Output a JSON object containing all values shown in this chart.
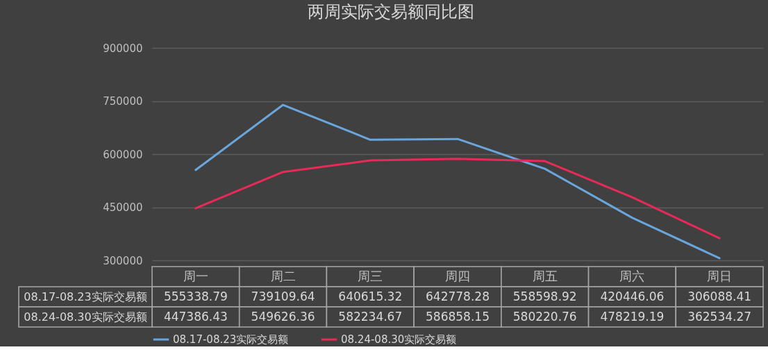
{
  "chart_data": {
    "type": "line",
    "title": "两周实际交易额同比图",
    "categories": [
      "周一",
      "周二",
      "周三",
      "周四",
      "周五",
      "周六",
      "周日"
    ],
    "series": [
      {
        "name": "08.17-08.23实际交易额",
        "color": "#6aa5dc",
        "values": [
          555338.79,
          739109.64,
          640615.32,
          642778.28,
          558598.92,
          420446.06,
          306088.41
        ]
      },
      {
        "name": "08.24-08.30实际交易额",
        "color": "#e82a58",
        "values": [
          447386.43,
          549626.36,
          582234.67,
          586858.15,
          580220.76,
          478219.19,
          362534.27
        ]
      }
    ],
    "ylim": [
      300000,
      900000
    ],
    "yticks": [
      300000,
      450000,
      600000,
      750000,
      900000
    ],
    "grid": "y",
    "legend": "bottom",
    "data_labels": true,
    "marker": "none",
    "line_style": "solid"
  }
}
